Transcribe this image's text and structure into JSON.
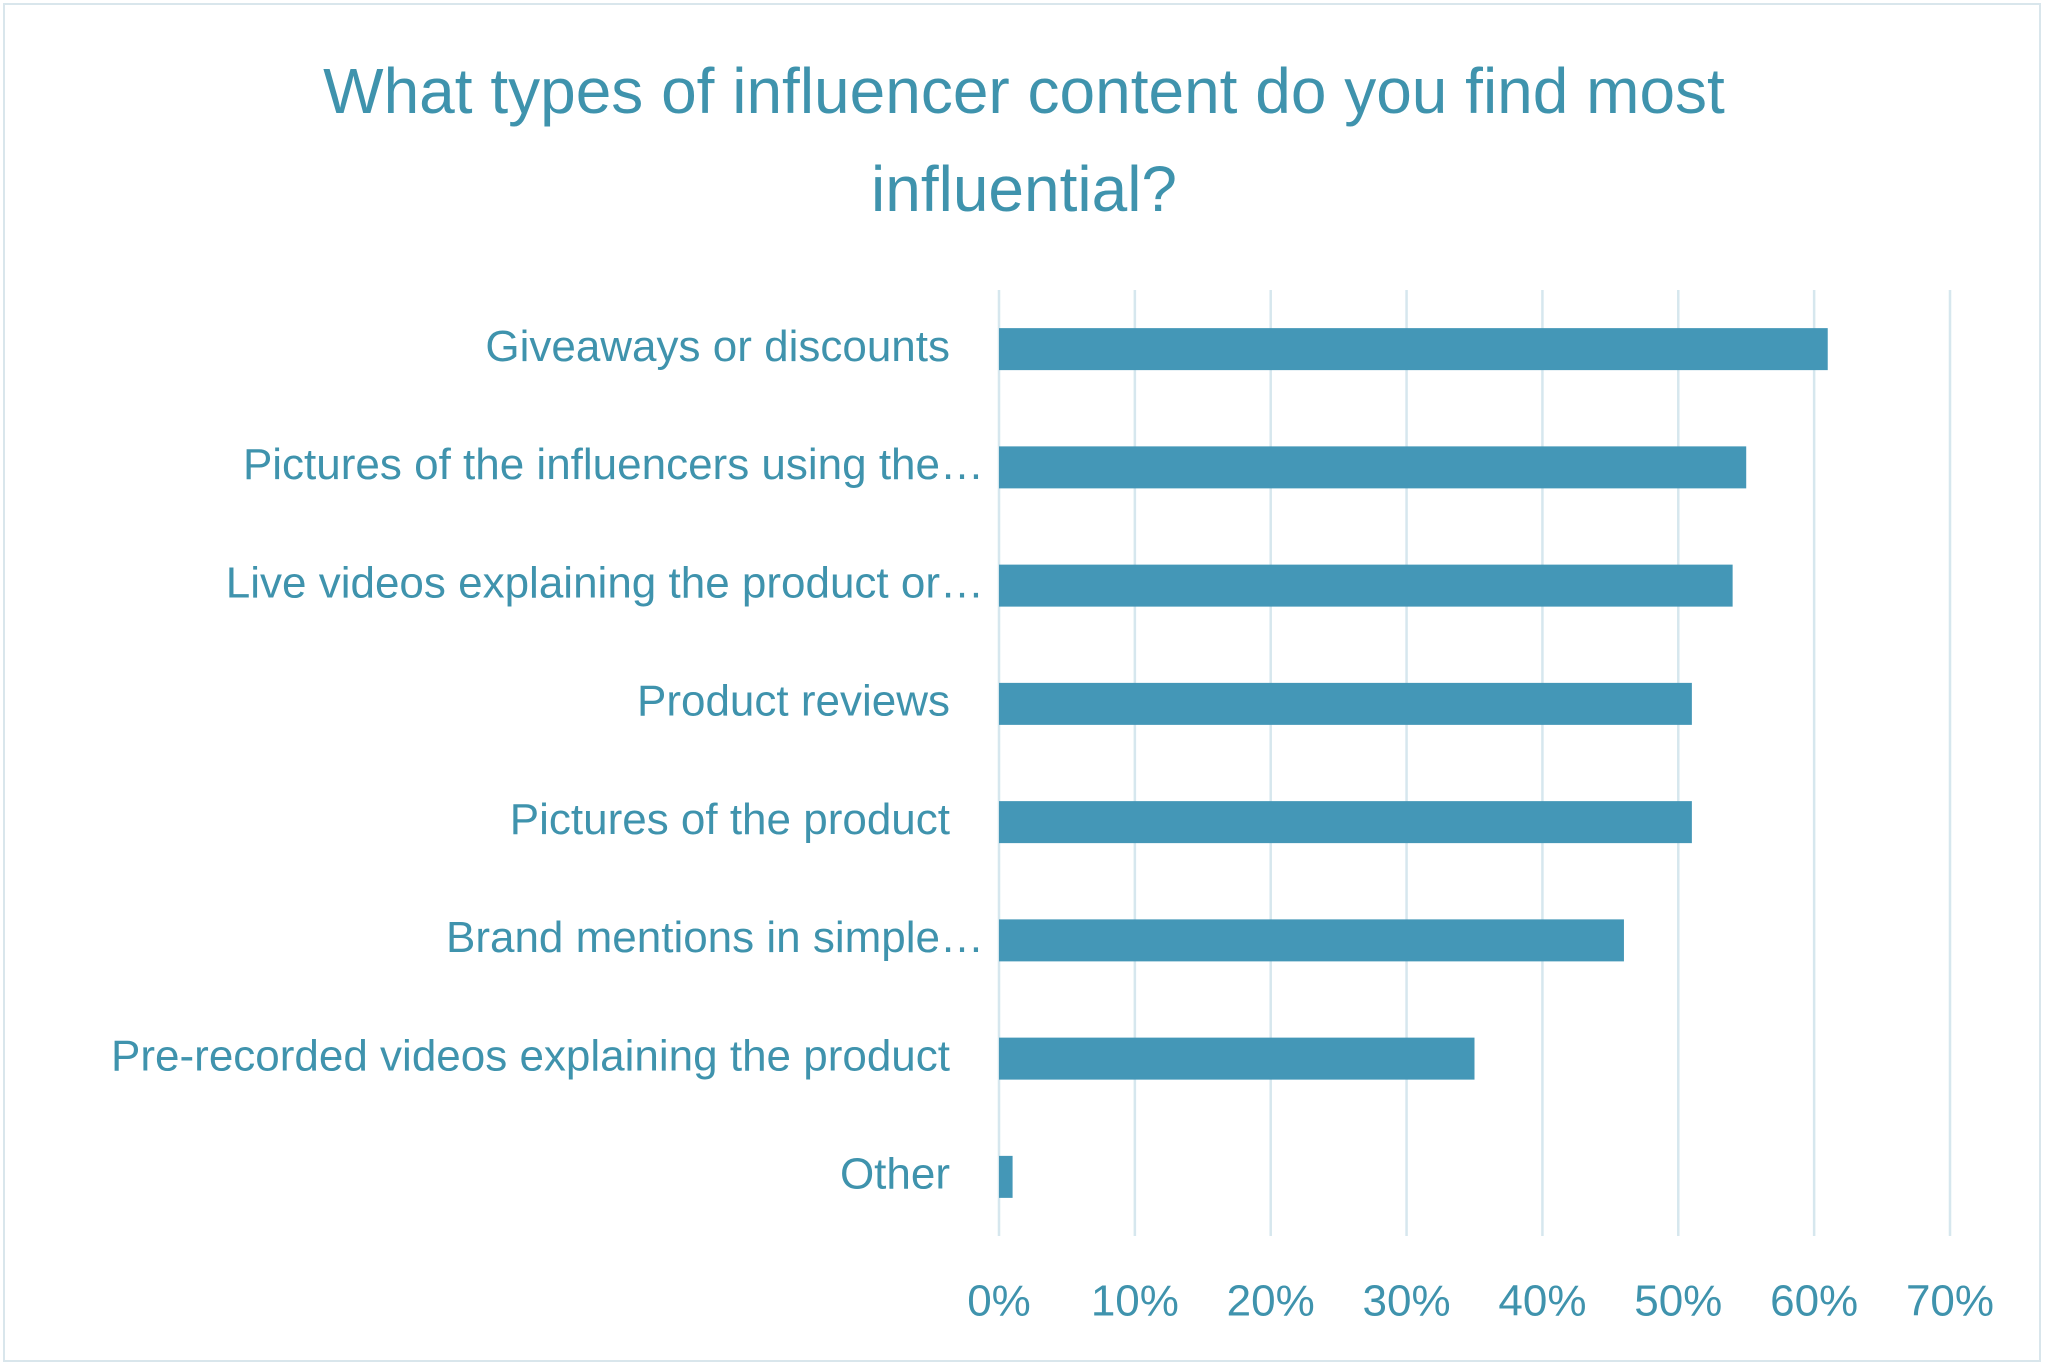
{
  "chart_data": {
    "type": "bar",
    "orientation": "horizontal",
    "title": "What types of influencer content do you find most influential?",
    "categories": [
      "Giveaways or discounts",
      "Pictures of the influencers using the…",
      "Live videos explaining the product or…",
      "Product reviews",
      "Pictures of the product",
      "Brand mentions in simple…",
      "Pre-recorded videos explaining the product",
      "Other"
    ],
    "values": [
      61,
      55,
      54,
      51,
      51,
      46,
      35,
      1
    ],
    "color": "#4497b7",
    "xlim": [
      0,
      70
    ],
    "xticks": [
      {
        "value": 0,
        "label": "0%"
      },
      {
        "value": 10,
        "label": "10%"
      },
      {
        "value": 20,
        "label": "20%"
      },
      {
        "value": 30,
        "label": "30%"
      },
      {
        "value": 40,
        "label": "40%"
      },
      {
        "value": 50,
        "label": "50%"
      },
      {
        "value": 60,
        "label": "60%"
      },
      {
        "value": 70,
        "label": "70%"
      }
    ],
    "grid": true
  }
}
